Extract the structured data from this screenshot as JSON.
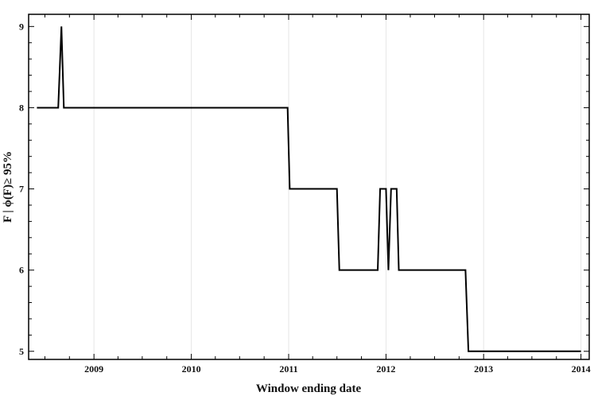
{
  "chart_data": {
    "type": "line",
    "title": "",
    "xlabel": "Window ending date",
    "ylabel": "F | ϕ(F)≥ 95%",
    "x_axis_type": "date",
    "xlim": [
      "2008-05-01",
      "2014-02-01"
    ],
    "ylim": [
      4.9,
      9.15
    ],
    "x_ticks": [
      "2009",
      "2010",
      "2011",
      "2012",
      "2013",
      "2014"
    ],
    "y_ticks": [
      "5",
      "6",
      "7",
      "8",
      "9"
    ],
    "grid": "vertical",
    "line_color": "#000000",
    "series": [
      {
        "points": [
          [
            "2008-06-01",
            8
          ],
          [
            "2008-08-20",
            8
          ],
          [
            "2008-09-01",
            9
          ],
          [
            "2008-09-10",
            8
          ],
          [
            "2010-12-28",
            8
          ],
          [
            "2011-01-05",
            7
          ],
          [
            "2011-07-01",
            7
          ],
          [
            "2011-07-10",
            6
          ],
          [
            "2011-12-01",
            6
          ],
          [
            "2011-12-10",
            7
          ],
          [
            "2012-01-01",
            7
          ],
          [
            "2012-01-10",
            6
          ],
          [
            "2012-01-20",
            7
          ],
          [
            "2012-02-10",
            7
          ],
          [
            "2012-02-18",
            6
          ],
          [
            "2012-10-25",
            6
          ],
          [
            "2012-11-05",
            5
          ],
          [
            "2014-01-01",
            5
          ]
        ]
      }
    ]
  }
}
